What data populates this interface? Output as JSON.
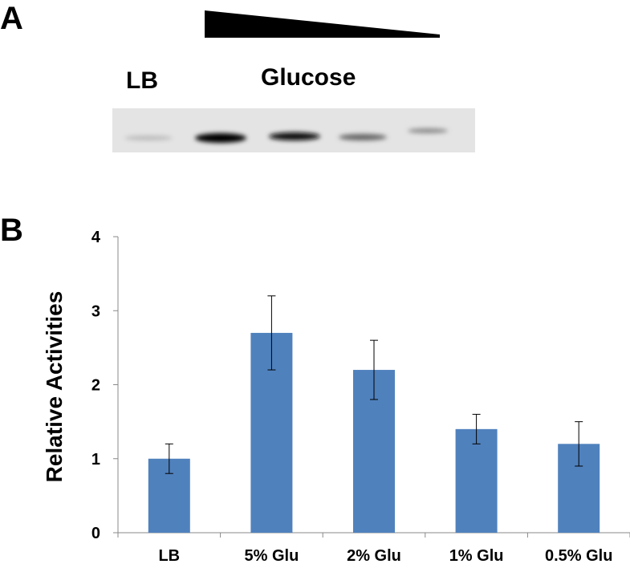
{
  "panel_a": {
    "label": "A",
    "lane_label": "LB",
    "treatment_label": "Glucose"
  },
  "chart_data": {
    "type": "bar",
    "panel_label": "B",
    "categories": [
      "LB",
      "5% Glu",
      "2% Glu",
      "1% Glu",
      "0.5% Glu"
    ],
    "values": [
      1.0,
      2.7,
      2.2,
      1.4,
      1.2
    ],
    "errors": [
      0.2,
      0.5,
      0.4,
      0.2,
      0.3
    ],
    "color": "#4f81bd",
    "ylabel": "Relative Activities",
    "ylim": [
      0,
      4
    ],
    "yticks": [
      0,
      1,
      2,
      3,
      4
    ]
  }
}
